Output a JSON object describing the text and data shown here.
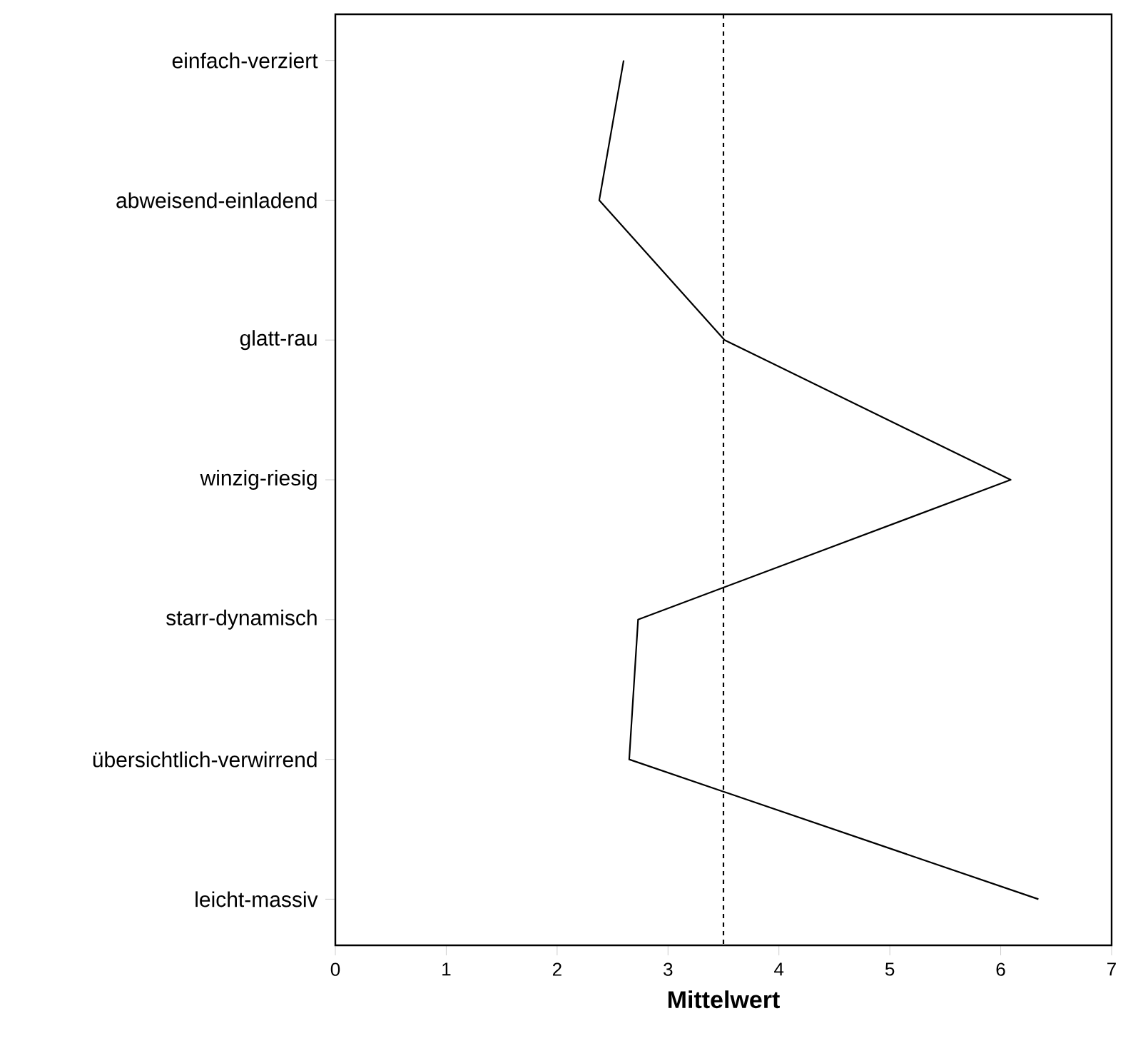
{
  "chart_data": {
    "type": "line",
    "orientation": "horizontal",
    "categories": [
      "einfach-verziert",
      "abweisend-einladend",
      "glatt-rau",
      "winzig-riesig",
      "starr-dynamisch",
      "übersichtlich-verwirrend",
      "leicht-massiv"
    ],
    "values": [
      2.6,
      2.38,
      3.51,
      6.09,
      2.73,
      2.65,
      6.34
    ],
    "color": "#000000",
    "marker": "none",
    "line_style": "solid",
    "xlim": [
      0,
      7
    ],
    "xticks": [
      0,
      1,
      2,
      3,
      4,
      5,
      6,
      7
    ],
    "xlabel": "Mittelwert",
    "ref_lines": [
      {
        "axis": "x",
        "value": 3.5,
        "line_style": "dashed",
        "color": "#000000"
      }
    ]
  }
}
